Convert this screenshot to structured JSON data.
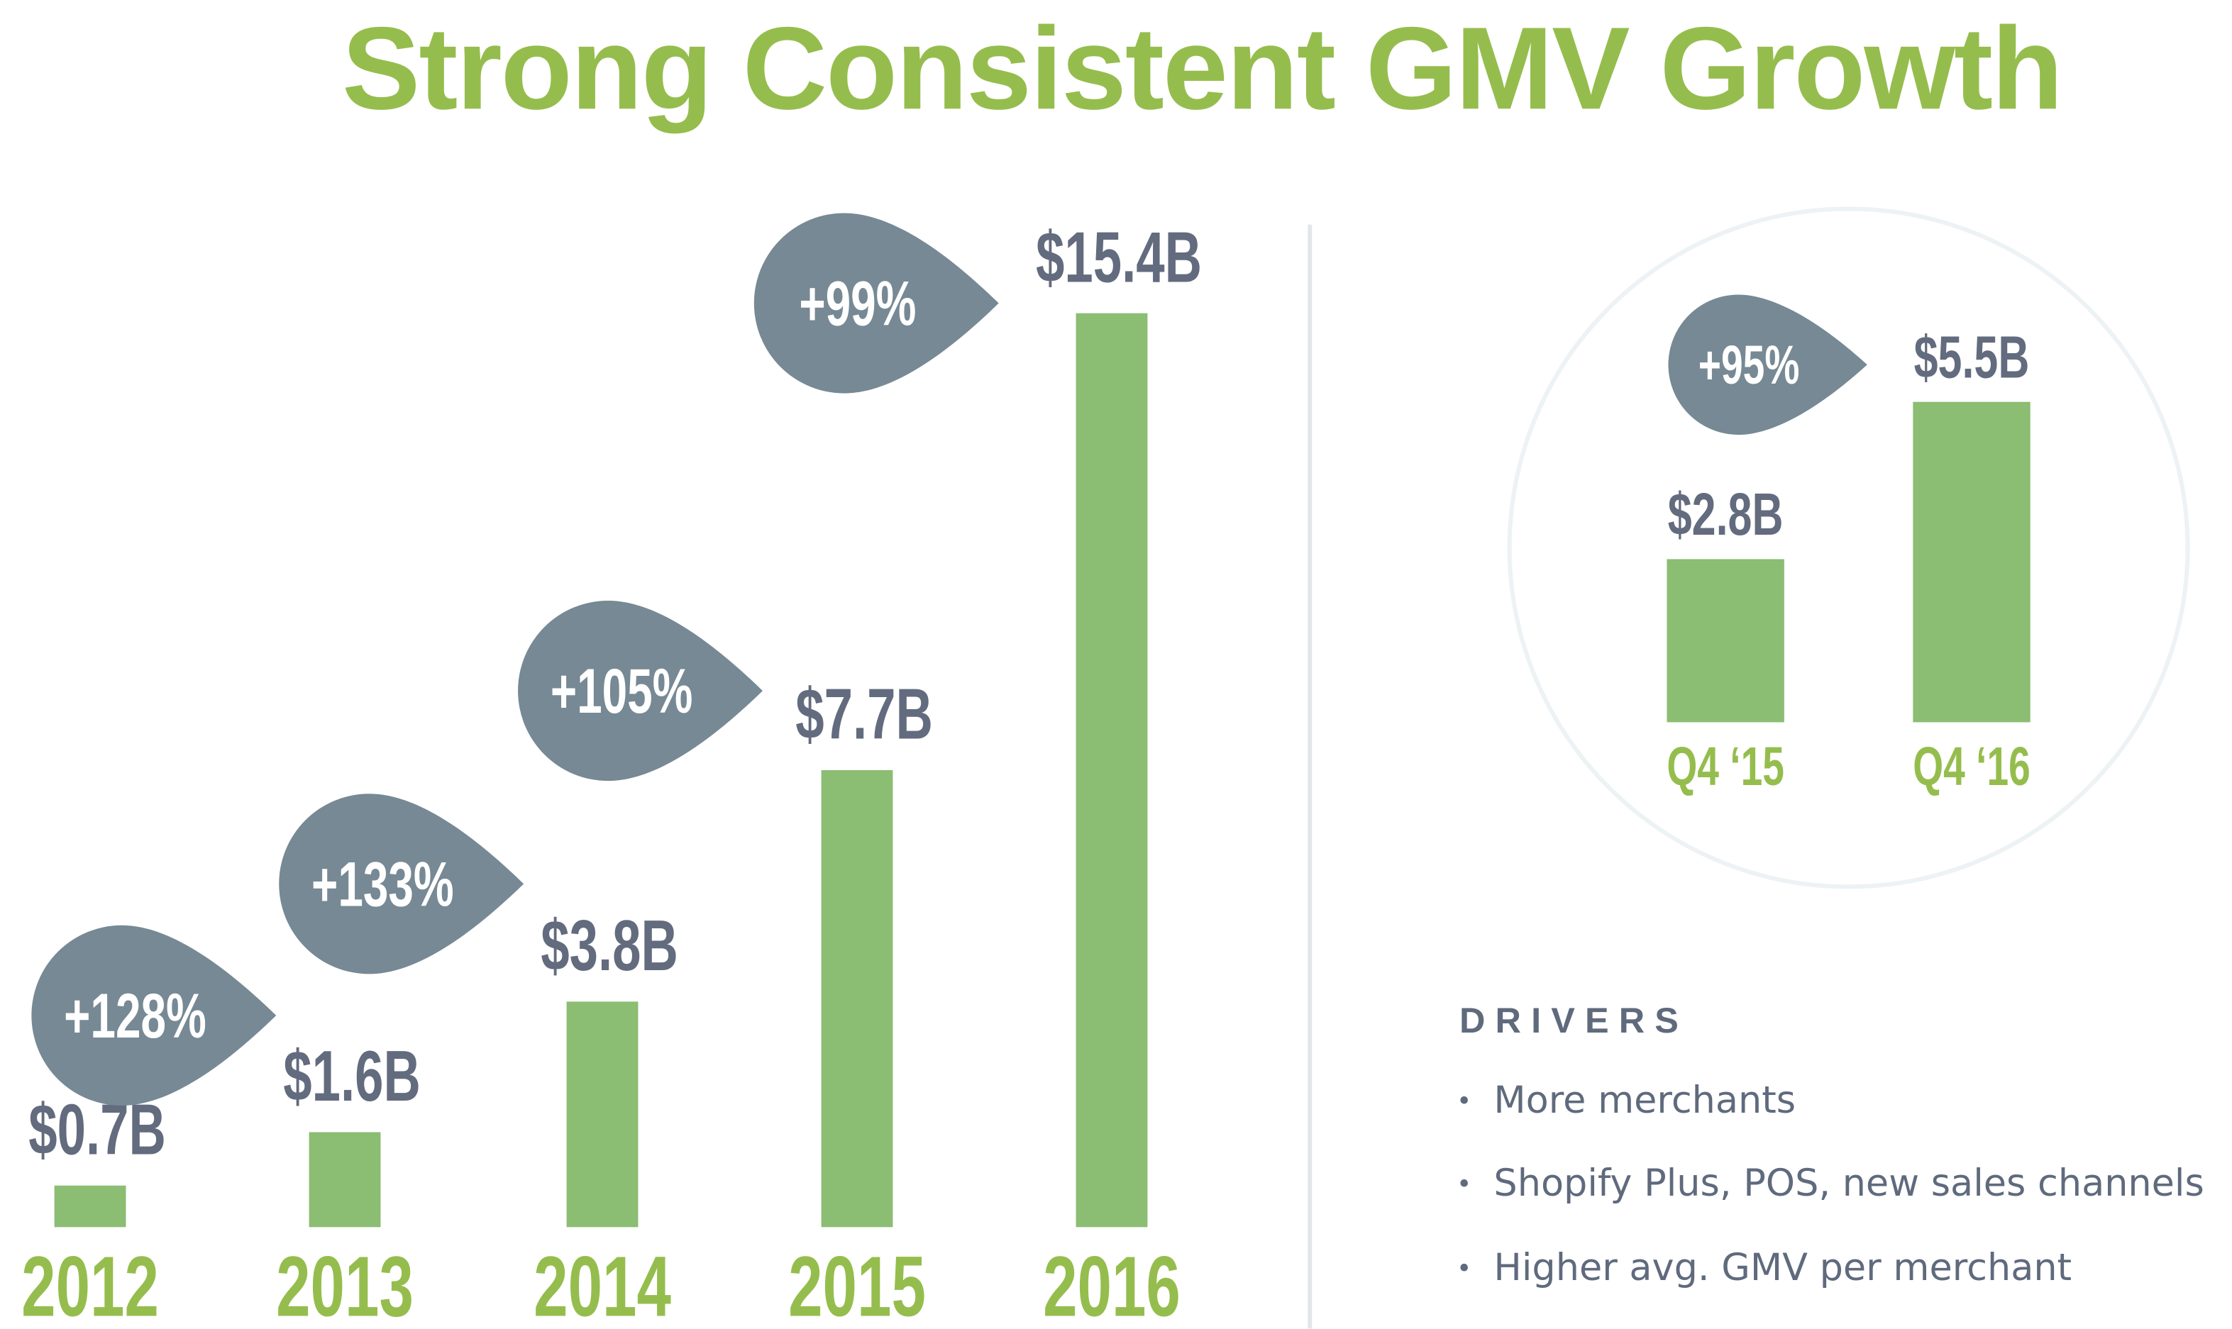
{
  "title": "Strong Consistent GMV Growth",
  "colors": {
    "title": "#95bd4d",
    "bar": "#8bbd72",
    "value_label": "#636b7e",
    "drop": "#768994",
    "circle": "#edf2f4"
  },
  "chart_data": [
    {
      "type": "bar",
      "categories": [
        "2012",
        "2013",
        "2014",
        "2015",
        "2016"
      ],
      "values": [
        0.7,
        1.6,
        3.8,
        7.7,
        15.4
      ],
      "value_labels": [
        "$0.7B",
        "$1.6B",
        "$3.8B",
        "$7.7B",
        "$15.4B"
      ],
      "growth_labels": [
        "+128%",
        "+133%",
        "+105%",
        "+99%"
      ],
      "unit": "$B"
    },
    {
      "type": "bar",
      "categories": [
        "Q4 ‘15",
        "Q4 ‘16"
      ],
      "values": [
        2.8,
        5.5
      ],
      "value_labels": [
        "$2.8B",
        "$5.5B"
      ],
      "growth_labels": [
        "+95%"
      ],
      "unit": "$B"
    }
  ],
  "drivers": {
    "heading": "DRIVERS",
    "bullet": "•",
    "items": [
      "More merchants",
      "Shopify Plus, POS, new sales channels",
      "Higher avg. GMV per merchant"
    ]
  }
}
